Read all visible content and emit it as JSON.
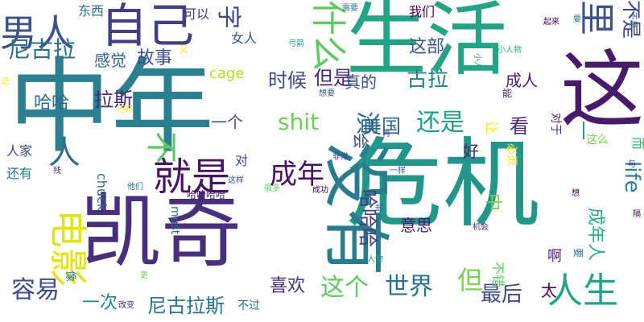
{
  "word_cloud": {
    "words": [
      {
        "text": "中年",
        "color": "#2c7f8e"
      },
      {
        "text": "危机",
        "color": "#23968b"
      },
      {
        "text": "生活",
        "color": "#25a386"
      },
      {
        "text": "凯奇",
        "color": "#472f7d"
      },
      {
        "text": "这",
        "color": "#481a6c"
      },
      {
        "text": "没有",
        "color": "#287c8e"
      },
      {
        "text": "自己",
        "color": "#423f85"
      },
      {
        "text": "就是",
        "color": "#471365"
      },
      {
        "text": "电影",
        "color": "#e2e418"
      },
      {
        "text": "男人",
        "color": "#3b528b"
      },
      {
        "text": "人生",
        "color": "#20a386"
      },
      {
        "text": "什么",
        "color": "#5ec962"
      },
      {
        "text": "里",
        "color": "#3b528b"
      },
      {
        "text": "人",
        "color": "#2f6c8e"
      },
      {
        "text": "不",
        "color": "#5ec962"
      },
      {
        "text": "成年",
        "color": "#471063"
      },
      {
        "text": "字",
        "color": "#3e4989"
      },
      {
        "text": "不是",
        "color": "#414487"
      },
      {
        "text": "尼古拉",
        "color": "#2d708e"
      },
      {
        "text": "还是",
        "color": "#1f9e89"
      },
      {
        "text": "世界",
        "color": "#2c718e"
      },
      {
        "text": "但",
        "color": "#7ad151"
      },
      {
        "text": "这个",
        "color": "#5ec962"
      },
      {
        "text": "容易",
        "color": "#3e4a89"
      },
      {
        "text": "最后",
        "color": "#3e4989"
      },
      {
        "text": "演",
        "color": "#2e6e8e"
      },
      {
        "text": "美国",
        "color": "#32658e"
      },
      {
        "text": "古拉",
        "color": "#27808e"
      },
      {
        "text": "时候",
        "color": "#3f4788"
      },
      {
        "text": "但是",
        "color": "#482576"
      },
      {
        "text": "喜欢",
        "color": "#46307e"
      },
      {
        "text": "尼古拉斯",
        "color": "#2c728e"
      },
      {
        "text": "拉斯",
        "color": "#482979"
      },
      {
        "text": "故事",
        "color": "#3b518b"
      },
      {
        "text": "一次",
        "color": "#23898e"
      },
      {
        "text": "这部",
        "color": "#3a548c"
      },
      {
        "text": "中",
        "color": "#7ad151"
      },
      {
        "text": "看",
        "color": "#482878"
      },
      {
        "text": "哈哈哈",
        "color": "#433e85"
      },
      {
        "text": "成年人",
        "color": "#28ae80"
      },
      {
        "text": "shit",
        "color": "#6ece58"
      },
      {
        "text": "life",
        "color": "#27808e"
      },
      {
        "text": "cage",
        "color": "#b5de2b"
      },
      {
        "text": "真的",
        "color": "#3b518b"
      },
      {
        "text": "成人",
        "color": "#482374"
      },
      {
        "text": "一个",
        "color": "#3e4a89"
      },
      {
        "text": "好",
        "color": "#482475"
      },
      {
        "text": "哈哈",
        "color": "#31688e"
      },
      {
        "text": "一",
        "color": "#1f9a8a"
      },
      {
        "text": "感觉",
        "color": "#31688e"
      },
      {
        "text": "会",
        "color": "#3b528b"
      },
      {
        "text": "意思",
        "color": "#481f70"
      },
      {
        "text": "太",
        "color": "#440154"
      },
      {
        "text": "我们",
        "color": "#440154"
      },
      {
        "text": "可以",
        "color": "#453781"
      },
      {
        "text": "东西",
        "color": "#2c728e"
      },
      {
        "text": "女人",
        "color": "#39568c"
      },
      {
        "text": "啊",
        "color": "#482576"
      },
      {
        "text": "不错",
        "color": "#5ec962"
      },
      {
        "text": "人家",
        "color": "#3e4989"
      },
      {
        "text": "还有",
        "color": "#2a788e"
      },
      {
        "text": "chuck",
        "color": "#2d708e"
      },
      {
        "text": "对",
        "color": "#3e4989"
      },
      {
        "text": "对于",
        "color": "#482878"
      },
      {
        "text": "必须",
        "color": "#fde725"
      },
      {
        "text": "让",
        "color": "#fde725"
      },
      {
        "text": "这么",
        "color": "#7ad151"
      },
      {
        "text": "而",
        "color": "#2fb47c"
      },
      {
        "text": "哈哈哈哈",
        "color": "#481a6c"
      },
      {
        "text": "不过",
        "color": "#2c718e"
      },
      {
        "text": "像",
        "color": "#287d8e"
      },
      {
        "text": "must",
        "color": "#2d708e"
      },
      {
        "text": "要",
        "color": "#2c728e"
      },
      {
        "text": "需要",
        "color": "#297b8e"
      },
      {
        "text": "又",
        "color": "#fde725"
      },
      {
        "text": "小人物",
        "color": "#35b779"
      },
      {
        "text": "起来",
        "color": "#440154"
      },
      {
        "text": "弓箭",
        "color": "#1f9e89"
      },
      {
        "text": "小人",
        "color": "#1f9e89"
      },
      {
        "text": "想要",
        "color": "#355f8d"
      },
      {
        "text": "能",
        "color": "#481a6c"
      },
      {
        "text": "还",
        "color": "#fde725"
      },
      {
        "text": "还好",
        "color": "#fde725"
      },
      {
        "text": "再",
        "color": "#414487"
      },
      {
        "text": "非常",
        "color": "#433e85"
      },
      {
        "text": "这样",
        "color": "#3b528b"
      },
      {
        "text": "很多",
        "color": "#5ec962"
      },
      {
        "text": "成功",
        "color": "#440154"
      },
      {
        "text": "他们",
        "color": "#2c728e"
      },
      {
        "text": "残",
        "color": "#472f7d"
      },
      {
        "text": "一样",
        "color": "#39568c"
      },
      {
        "text": "想",
        "color": "#440154"
      },
      {
        "text": "却",
        "color": "#31688e"
      },
      {
        "text": "机会",
        "color": "#472d7b"
      },
      {
        "text": "与",
        "color": "#481f70"
      },
      {
        "text": "隔",
        "color": "#440154"
      },
      {
        "text": "人物",
        "color": "#1f9e89"
      },
      {
        "text": "更",
        "color": "#7ad151"
      },
      {
        "text": "改变",
        "color": "#482878"
      },
      {
        "text": "要",
        "color": "#2c718e"
      },
      {
        "text": "不是",
        "color": "#3b528b"
      }
    ]
  }
}
